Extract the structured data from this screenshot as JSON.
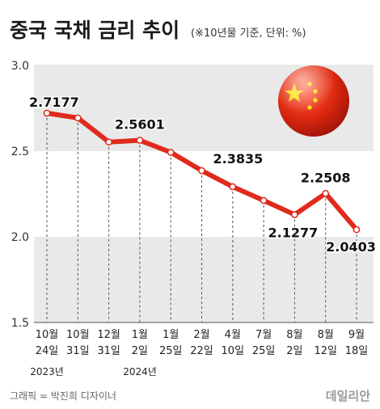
{
  "header": {
    "title": "중국 국채 금리 추이",
    "subtitle": "(※10년물 기준, 단위: %)"
  },
  "chart_data": {
    "type": "line",
    "title": "중국 국채 금리 추이",
    "unit_note": "(※10년물 기준, 단위: %)",
    "y_ticks": [
      "3.0",
      "2.5",
      "2.0",
      "1.5"
    ],
    "ylim": [
      1.5,
      3.0
    ],
    "grid": true,
    "points": [
      {
        "month": "10월",
        "day": "24일",
        "value": 2.7177,
        "label": "2.7177"
      },
      {
        "month": "10월",
        "day": "31일",
        "value": 2.69
      },
      {
        "month": "12월",
        "day": "31일",
        "value": 2.55
      },
      {
        "month": "1월",
        "day": "2일",
        "value": 2.5601,
        "label": "2.5601"
      },
      {
        "month": "1월",
        "day": "25일",
        "value": 2.49
      },
      {
        "month": "2월",
        "day": "22일",
        "value": 2.3835,
        "label": "2.3835"
      },
      {
        "month": "4월",
        "day": "10일",
        "value": 2.29
      },
      {
        "month": "7월",
        "day": "25일",
        "value": 2.21
      },
      {
        "month": "8월",
        "day": "2일",
        "value": 2.1277,
        "label": "2.1277"
      },
      {
        "month": "8월",
        "day": "12일",
        "value": 2.2508,
        "label": "2.2508"
      },
      {
        "month": "9월",
        "day": "18일",
        "value": 2.0403,
        "label": "2.0403"
      }
    ],
    "year_labels": [
      "2023년",
      "2024년"
    ],
    "line_color": "#e02a1c",
    "band_color": "#e9e9e9"
  },
  "footer": {
    "credit": "그래픽 = 박진희 디자이너",
    "brand": "데일리안"
  },
  "flag": {
    "icon": "china-flag-icon",
    "red": "#de2910",
    "gold": "#ffde00"
  }
}
